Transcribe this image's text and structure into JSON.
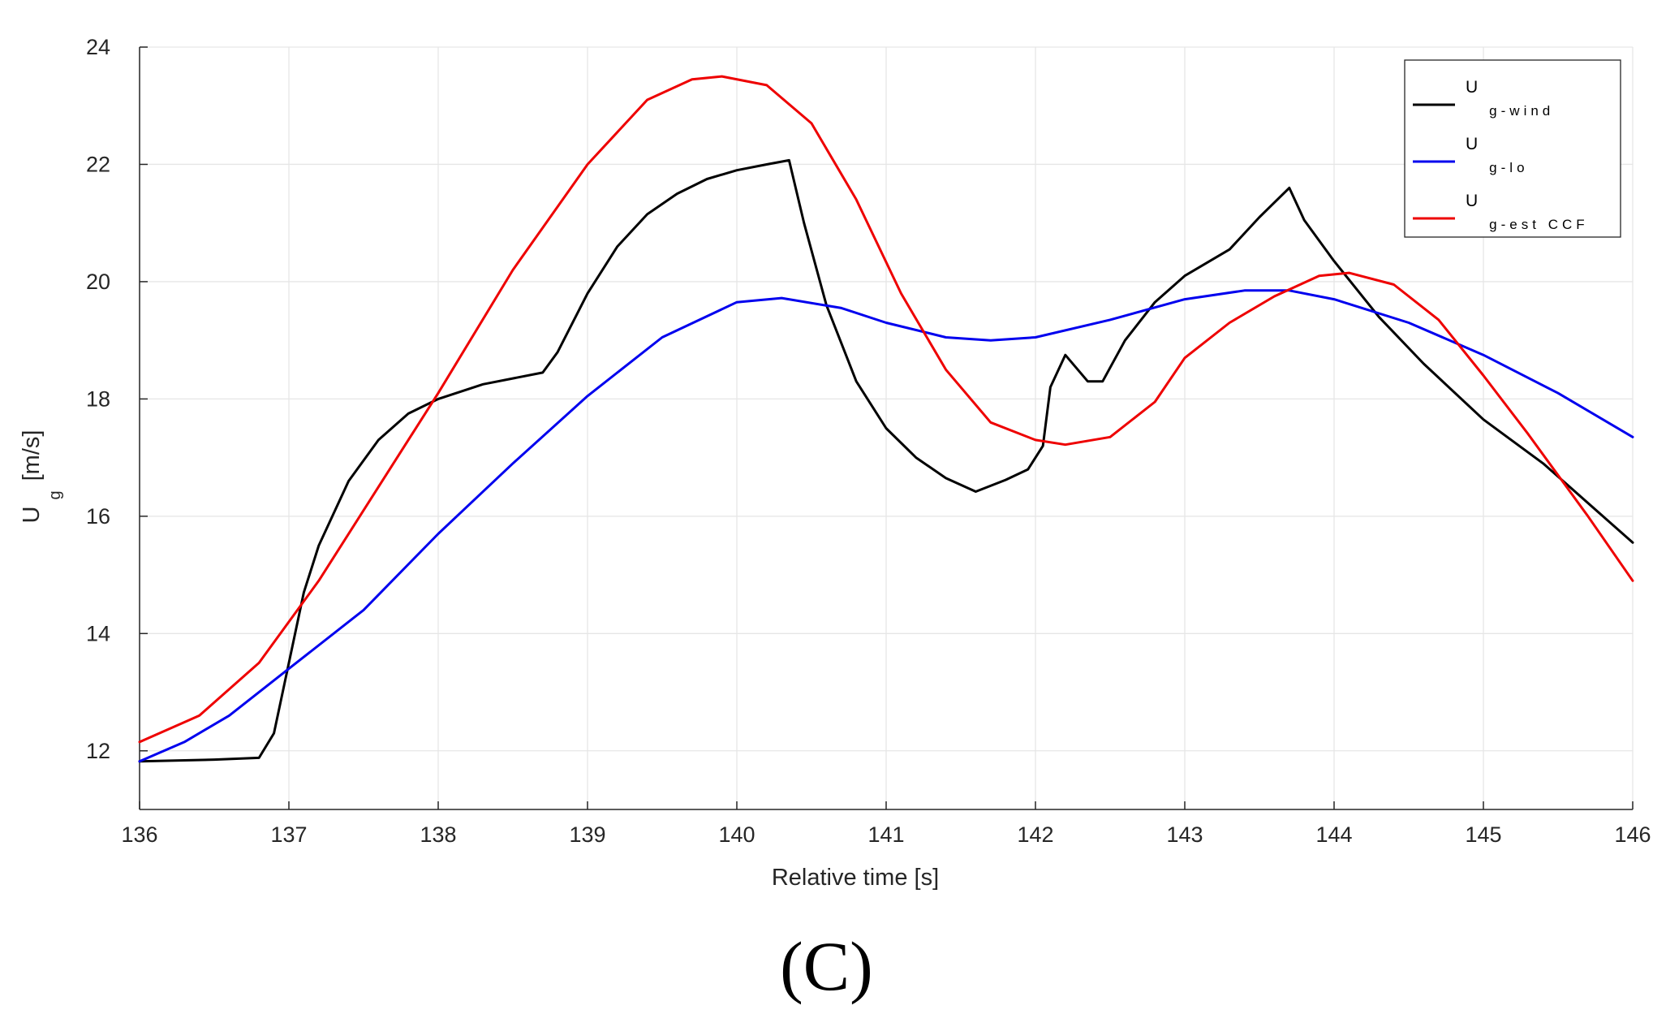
{
  "chart_data": {
    "type": "line",
    "title": "",
    "xlabel": "Relative time [s]",
    "ylabel": {
      "main": "U",
      "sub": "g",
      "unit": "[m/s]"
    },
    "xlim": [
      136,
      146
    ],
    "ylim": [
      11,
      24
    ],
    "xticks": [
      136,
      137,
      138,
      139,
      140,
      141,
      142,
      143,
      144,
      145,
      146
    ],
    "yticks": [
      12,
      14,
      16,
      18,
      20,
      22,
      24
    ],
    "grid": true,
    "legend_position": "top-right",
    "series": [
      {
        "name": "U g-wind",
        "main": "U",
        "sub": "g-wind",
        "color": "#000000",
        "points": [
          [
            136,
            11.82
          ],
          [
            136.5,
            11.85
          ],
          [
            136.8,
            11.88
          ],
          [
            136.9,
            12.3
          ],
          [
            137,
            13.5
          ],
          [
            137.1,
            14.7
          ],
          [
            137.2,
            15.5
          ],
          [
            137.4,
            16.6
          ],
          [
            137.6,
            17.3
          ],
          [
            137.8,
            17.75
          ],
          [
            138,
            18.0
          ],
          [
            138.3,
            18.25
          ],
          [
            138.7,
            18.45
          ],
          [
            138.8,
            18.8
          ],
          [
            139,
            19.8
          ],
          [
            139.2,
            20.6
          ],
          [
            139.4,
            21.15
          ],
          [
            139.6,
            21.5
          ],
          [
            139.8,
            21.75
          ],
          [
            140,
            21.9
          ],
          [
            140.2,
            22.0
          ],
          [
            140.35,
            22.07
          ],
          [
            140.45,
            21.0
          ],
          [
            140.6,
            19.6
          ],
          [
            140.8,
            18.3
          ],
          [
            141,
            17.5
          ],
          [
            141.2,
            17.0
          ],
          [
            141.4,
            16.65
          ],
          [
            141.6,
            16.42
          ],
          [
            141.8,
            16.62
          ],
          [
            141.95,
            16.8
          ],
          [
            142.05,
            17.2
          ],
          [
            142.1,
            18.2
          ],
          [
            142.2,
            18.75
          ],
          [
            142.35,
            18.3
          ],
          [
            142.45,
            18.3
          ],
          [
            142.6,
            19.0
          ],
          [
            142.8,
            19.65
          ],
          [
            143,
            20.1
          ],
          [
            143.3,
            20.55
          ],
          [
            143.5,
            21.1
          ],
          [
            143.7,
            21.6
          ],
          [
            143.8,
            21.05
          ],
          [
            144,
            20.35
          ],
          [
            144.3,
            19.4
          ],
          [
            144.6,
            18.6
          ],
          [
            145,
            17.65
          ],
          [
            145.4,
            16.9
          ],
          [
            145.8,
            16.0
          ],
          [
            146,
            15.55
          ]
        ]
      },
      {
        "name": "U g-lo",
        "main": "U",
        "sub": "g-lo",
        "color": "#0000ee",
        "points": [
          [
            136,
            11.82
          ],
          [
            136.3,
            12.15
          ],
          [
            136.6,
            12.6
          ],
          [
            137,
            13.4
          ],
          [
            137.5,
            14.4
          ],
          [
            138,
            15.7
          ],
          [
            138.5,
            16.9
          ],
          [
            139,
            18.05
          ],
          [
            139.5,
            19.05
          ],
          [
            140,
            19.65
          ],
          [
            140.3,
            19.72
          ],
          [
            140.7,
            19.55
          ],
          [
            141,
            19.3
          ],
          [
            141.4,
            19.05
          ],
          [
            141.7,
            19.0
          ],
          [
            142,
            19.05
          ],
          [
            142.5,
            19.35
          ],
          [
            143,
            19.7
          ],
          [
            143.4,
            19.85
          ],
          [
            143.7,
            19.85
          ],
          [
            144,
            19.7
          ],
          [
            144.5,
            19.3
          ],
          [
            145,
            18.75
          ],
          [
            145.5,
            18.1
          ],
          [
            146,
            17.35
          ]
        ]
      },
      {
        "name": "U g-est CCF",
        "main": "U",
        "sub": "g-est CCF",
        "color": "#ee0000",
        "points": [
          [
            136,
            12.15
          ],
          [
            136.4,
            12.6
          ],
          [
            136.8,
            13.5
          ],
          [
            137.2,
            14.9
          ],
          [
            137.6,
            16.5
          ],
          [
            138,
            18.1
          ],
          [
            138.5,
            20.2
          ],
          [
            139,
            22.0
          ],
          [
            139.4,
            23.1
          ],
          [
            139.7,
            23.45
          ],
          [
            139.9,
            23.5
          ],
          [
            140.2,
            23.35
          ],
          [
            140.5,
            22.7
          ],
          [
            140.8,
            21.4
          ],
          [
            141.1,
            19.8
          ],
          [
            141.4,
            18.5
          ],
          [
            141.7,
            17.6
          ],
          [
            142,
            17.3
          ],
          [
            142.2,
            17.22
          ],
          [
            142.5,
            17.35
          ],
          [
            142.8,
            17.95
          ],
          [
            143,
            18.7
          ],
          [
            143.3,
            19.3
          ],
          [
            143.6,
            19.75
          ],
          [
            143.9,
            20.1
          ],
          [
            144.1,
            20.15
          ],
          [
            144.4,
            19.95
          ],
          [
            144.7,
            19.35
          ],
          [
            145,
            18.4
          ],
          [
            145.3,
            17.4
          ],
          [
            145.7,
            16.0
          ],
          [
            146,
            14.9
          ]
        ]
      }
    ]
  },
  "panel_label": "(C)"
}
